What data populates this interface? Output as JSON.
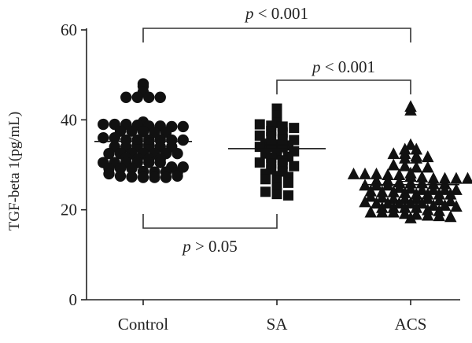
{
  "chart_data": {
    "type": "scatter",
    "ylabel": "TGF-beta 1(pg/mL)",
    "ylim": [
      0,
      60
    ],
    "yticks": [
      "0",
      "20",
      "40",
      "60"
    ],
    "categories": [
      "Control",
      "SA",
      "ACS"
    ],
    "series": [
      {
        "name": "Control",
        "marker": "circle",
        "mean": 35.2,
        "sem": 0.8,
        "values": [
          48,
          47.5,
          46.2,
          45,
          45,
          45,
          45,
          39.5,
          39,
          39,
          39,
          38.8,
          38.6,
          38.6,
          38.5,
          38.5,
          37.5,
          37.5,
          37.4,
          37.2,
          37.2,
          36,
          36,
          35.5,
          35.5,
          35.5,
          35.5,
          35.5,
          35.5,
          34.5,
          34.5,
          34,
          34,
          34,
          34,
          34,
          34,
          32.5,
          32.5,
          32.5,
          32.5,
          32.5,
          32.5,
          32.5,
          31.5,
          31.3,
          31.3,
          31.3,
          30.5,
          30.5,
          30.5,
          30.5,
          30.5,
          30.5,
          29.5,
          29.5,
          29.2,
          29.2,
          29.2,
          28.5,
          28.4,
          28.4,
          28.2,
          28,
          27.5,
          27.3,
          27.2,
          27.2,
          27.2,
          27.5
        ]
      },
      {
        "name": "SA",
        "marker": "square",
        "mean": 33.6,
        "sem": 0.9,
        "values": [
          42.5,
          41,
          39.3,
          39,
          38.7,
          38.5,
          38.2,
          37.5,
          37.2,
          36.5,
          36.2,
          35.7,
          35.5,
          34.7,
          34.5,
          34.3,
          34,
          34,
          34,
          33,
          32.5,
          32.3,
          31.8,
          31.5,
          31,
          30.5,
          30.3,
          30.2,
          29.7,
          29,
          28.5,
          28,
          27.5,
          27.3,
          26.8,
          26.5,
          26,
          25,
          24,
          23.5,
          23.2
        ]
      },
      {
        "name": "ACS",
        "marker": "triangle",
        "mean": 25.6,
        "sem": 0.7,
        "values": [
          43,
          42.2,
          34.5,
          33.5,
          33.5,
          32.5,
          32.5,
          32,
          31.8,
          31.5,
          31.5,
          30,
          29.8,
          29.5,
          29.5,
          28.2,
          28,
          28,
          28,
          27.8,
          27.8,
          27.5,
          27.3,
          27,
          27,
          27,
          27,
          26.5,
          26.5,
          26.2,
          26,
          26,
          25.8,
          25.8,
          25.5,
          25.5,
          25.5,
          25,
          24.8,
          24.5,
          24.5,
          24.5,
          24.5,
          24.2,
          24,
          24,
          23.8,
          23.5,
          23.5,
          23.5,
          23.5,
          23,
          22.8,
          22.5,
          22.5,
          22.5,
          22.5,
          22.2,
          22,
          21.8,
          21.5,
          21.5,
          21.5,
          21.5,
          21.5,
          21,
          21,
          20.8,
          20.5,
          20.5,
          20.5,
          20.5,
          20,
          19.8,
          19.5,
          19.5,
          19.5,
          19.2,
          19,
          18.8,
          18.7,
          18.5,
          18.2
        ]
      }
    ],
    "comparisons": [
      {
        "from": "Control",
        "to": "ACS",
        "label": "p < 0.001",
        "position": "above"
      },
      {
        "from": "SA",
        "to": "ACS",
        "label": "p < 0.001",
        "position": "above"
      },
      {
        "from": "Control",
        "to": "SA",
        "label": "p > 0.05",
        "position": "below"
      }
    ],
    "grid": false
  }
}
